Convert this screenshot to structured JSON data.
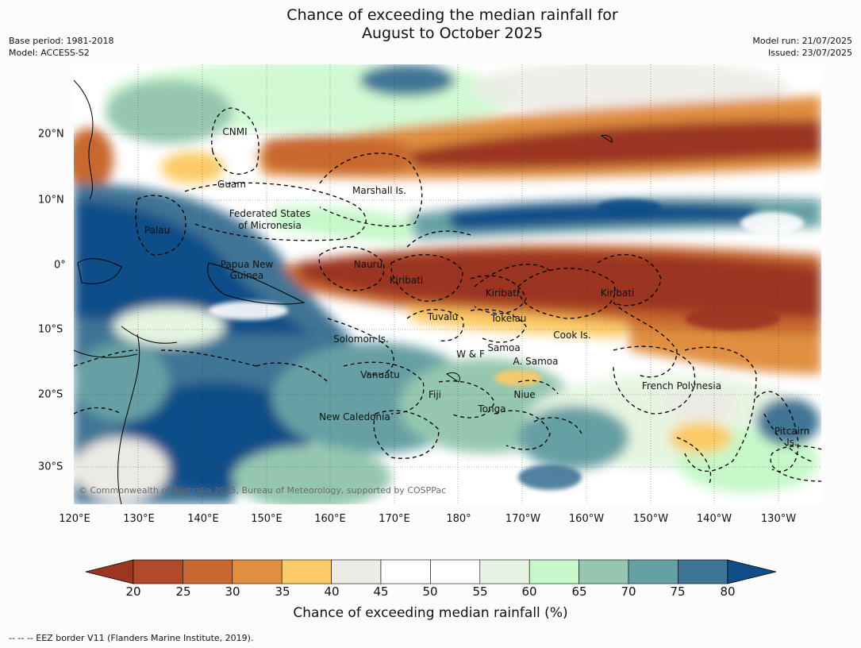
{
  "title": {
    "line1": "Chance of exceeding the median rainfall for",
    "line2": "August to October 2025"
  },
  "meta": {
    "base_period": "Base period: 1981-2018",
    "model": "Model: ACCESS-S2",
    "model_run": "Model run: 21/07/2025",
    "issued": "Issued: 23/07/2025"
  },
  "map": {
    "lat_labels": [
      "20°N",
      "10°N",
      "0°",
      "10°S",
      "20°S",
      "30°S"
    ],
    "lon_labels": [
      "120°E",
      "130°E",
      "140°E",
      "150°E",
      "160°E",
      "170°E",
      "180°",
      "170°W",
      "160°W",
      "150°W",
      "140°W",
      "130°W"
    ],
    "places": {
      "cnmi": "CNMI",
      "guam": "Guam",
      "marshall": "Marshall Is.",
      "fsm_1": "Federated States",
      "fsm_2": "of Micronesia",
      "palau": "Palau",
      "png_1": "Papua New",
      "png_2": "Guinea",
      "nauru": "Nauru",
      "kiribati_w": "Kiribati",
      "kiribati_c": "Kiribati",
      "kiribati_e": "Kiribati",
      "tuvalu": "Tuvalu",
      "tokelau": "Tokelau",
      "cook": "Cook Is.",
      "solomon": "Solomon Is.",
      "samoa": "Samoa",
      "wf": "W & F",
      "asamoa": "A. Samoa",
      "vanuatu": "Vanuatu",
      "fiji": "Fiji",
      "niue": "Niue",
      "tonga": "Tonga",
      "newcal": "New Caledonia",
      "frpoly": "French Polynesia",
      "pitcairn_1": "Pitcairn",
      "pitcairn_2": "Is."
    },
    "copyright": "© Commonwealth of Australia 2025, Bureau of Meteorology, supported by COSPPac"
  },
  "colorbar": {
    "title": "Chance of exceeding median rainfall (%)",
    "labels": [
      "20",
      "25",
      "30",
      "35",
      "40",
      "45",
      "50",
      "55",
      "60",
      "65",
      "70",
      "75",
      "80"
    ],
    "colors": [
      "#9b3621",
      "#b04a29",
      "#c8672f",
      "#e08f40",
      "#fccb66",
      "#eceae4",
      "#ffffff",
      "#ffffff",
      "#e6f5e2",
      "#c6f8c9",
      "#95c7b0",
      "#66a0a4",
      "#3f7595",
      "#114e88"
    ]
  },
  "footer": "--  --  -- EEZ border V11 (Flanders Marine Institute, 2019)."
}
